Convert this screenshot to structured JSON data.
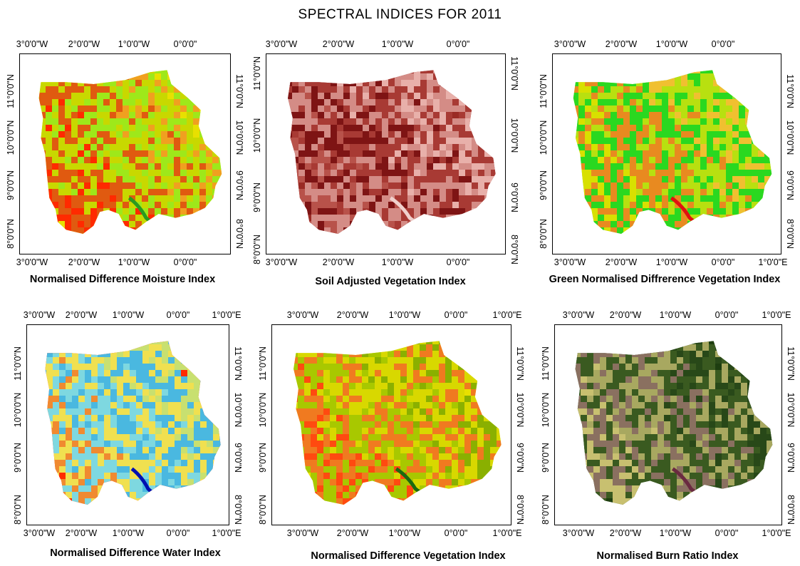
{
  "title": "SPECTRAL INDICES FOR 2011",
  "lon_labels_4": [
    "3°0'0\"W",
    "2°0'0\"W",
    "1°0'0\"W",
    "0°0'0\""
  ],
  "lon_labels_5": [
    "3°0'0\"W",
    "2°0'0\"W",
    "1°0'0\"W",
    "0°0'0\"",
    "1°0'0\"E"
  ],
  "lat_labels": [
    "11°0'0\"N",
    "10°0'0\"N",
    "9°0'0\"N",
    "8°0'0\"N"
  ],
  "panels": [
    {
      "name": "Normalised Difference Moisture Index",
      "colors": [
        "#e8e000",
        "#ff2a00",
        "#e05a10",
        "#c8d800",
        "#9ee81a",
        "#f0a020"
      ]
    },
    {
      "name": "Soil Adjusted Vegetation Index",
      "colors": [
        "#9a2a24",
        "#b8524a",
        "#7e1414",
        "#d48c86",
        "#a83a34",
        "#e8b0aa"
      ]
    },
    {
      "name": "Green Normalised Diffrerence Vegetation Index",
      "colors": [
        "#8ee42a",
        "#d8e000",
        "#e88a20",
        "#2ad820",
        "#b8e010",
        "#f0c030"
      ]
    },
    {
      "name": "Normalised Difference Water Index",
      "colors": [
        "#ff2a00",
        "#f08a30",
        "#7ed8e0",
        "#f0e050",
        "#4ab8e0",
        "#c8e070"
      ]
    },
    {
      "name": "Normalised Difference Vegetation Index",
      "colors": [
        "#e8e000",
        "#ff4a10",
        "#a8c800",
        "#f07a20",
        "#d8d800",
        "#8ab000"
      ]
    },
    {
      "name": "Normalised Burn Ratio Index",
      "colors": [
        "#1e3e10",
        "#c8c070",
        "#8a7060",
        "#3a5a20",
        "#a8a860",
        "#284818"
      ]
    }
  ]
}
